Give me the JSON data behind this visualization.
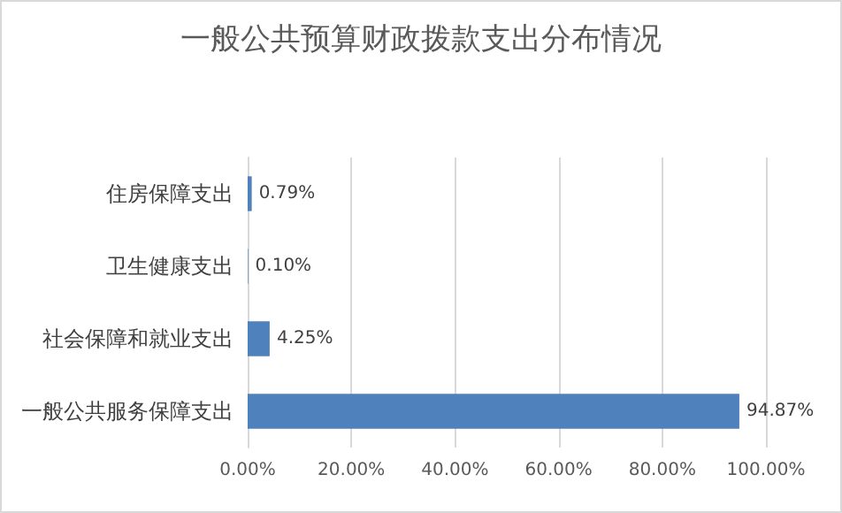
{
  "chart_data": {
    "type": "bar",
    "orientation": "horizontal",
    "title": "一般公共预算财政拨款支出分布情况",
    "categories": [
      "住房保障支出",
      "卫生健康支出",
      "社会保障和就业支出",
      "一般公共服务保障支出"
    ],
    "values": [
      0.79,
      0.1,
      4.25,
      94.87
    ],
    "color": "#4f81bd",
    "value_labels": [
      "0.79%",
      "0.10%",
      "4.25%",
      "94.87%"
    ],
    "xlim": [
      0,
      100
    ],
    "xticks": [
      {
        "value": 0,
        "label": "0.00%"
      },
      {
        "value": 20,
        "label": "20.00%"
      },
      {
        "value": 40,
        "label": "40.00%"
      },
      {
        "value": 60,
        "label": "60.00%"
      },
      {
        "value": 80,
        "label": "80.00%"
      },
      {
        "value": 100,
        "label": "100.00%"
      }
    ],
    "grid": "x"
  }
}
